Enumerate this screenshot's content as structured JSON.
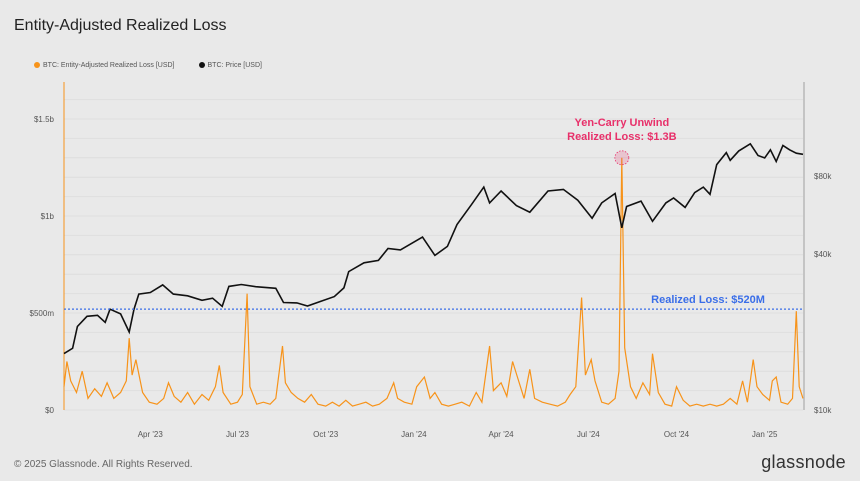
{
  "title": "Entity-Adjusted Realized Loss",
  "footer": "© 2025 Glassnode. All Rights Reserved.",
  "brand": "glassnode",
  "chart_data": {
    "type": "line",
    "title": "Entity-Adjusted Realized Loss",
    "legend": "top-left",
    "grid": true,
    "x_range": [
      "2023-01-01",
      "2025-02-10"
    ],
    "x_ticks": [
      {
        "date": "2023-04-01",
        "label": "Apr '23"
      },
      {
        "date": "2023-07-01",
        "label": "Jul '23"
      },
      {
        "date": "2023-10-01",
        "label": "Oct '23"
      },
      {
        "date": "2024-01-01",
        "label": "Jan '24"
      },
      {
        "date": "2024-04-01",
        "label": "Apr '24"
      },
      {
        "date": "2024-07-01",
        "label": "Jul '24"
      },
      {
        "date": "2024-10-01",
        "label": "Oct '24"
      },
      {
        "date": "2025-01-01",
        "label": "Jan '25"
      }
    ],
    "y_left": {
      "unit": "USD",
      "range": [
        0,
        1500000000
      ],
      "ticks": [
        {
          "v": 0,
          "label": "$0"
        },
        {
          "v": 500000000,
          "label": "$500m"
        },
        {
          "v": 1000000000,
          "label": "$1b"
        },
        {
          "v": 1500000000,
          "label": "$1.5b"
        }
      ]
    },
    "y_right": {
      "unit": "USD",
      "scale": "log",
      "range": [
        10000,
        185000
      ],
      "ticks": [
        {
          "v": 10000,
          "label": "$10k"
        },
        {
          "v": 40000,
          "label": "$40k"
        },
        {
          "v": 80000,
          "label": "$80k"
        }
      ]
    },
    "series": [
      {
        "name": "BTC: Entity-Adjusted Realized Loss [USD]",
        "color": "#f7931a",
        "axis": "left",
        "points": [
          [
            "2023-01-01",
            120
          ],
          [
            "2023-01-04",
            250
          ],
          [
            "2023-01-08",
            150
          ],
          [
            "2023-01-14",
            90
          ],
          [
            "2023-01-20",
            200
          ],
          [
            "2023-01-26",
            60
          ],
          [
            "2023-02-02",
            110
          ],
          [
            "2023-02-09",
            70
          ],
          [
            "2023-02-15",
            140
          ],
          [
            "2023-02-22",
            60
          ],
          [
            "2023-03-01",
            90
          ],
          [
            "2023-03-07",
            150
          ],
          [
            "2023-03-10",
            370
          ],
          [
            "2023-03-13",
            180
          ],
          [
            "2023-03-17",
            260
          ],
          [
            "2023-03-24",
            90
          ],
          [
            "2023-03-31",
            40
          ],
          [
            "2023-04-08",
            30
          ],
          [
            "2023-04-15",
            60
          ],
          [
            "2023-04-20",
            140
          ],
          [
            "2023-04-26",
            70
          ],
          [
            "2023-05-03",
            40
          ],
          [
            "2023-05-10",
            90
          ],
          [
            "2023-05-17",
            30
          ],
          [
            "2023-05-25",
            80
          ],
          [
            "2023-06-01",
            50
          ],
          [
            "2023-06-08",
            120
          ],
          [
            "2023-06-12",
            230
          ],
          [
            "2023-06-16",
            90
          ],
          [
            "2023-06-24",
            30
          ],
          [
            "2023-07-01",
            40
          ],
          [
            "2023-07-06",
            80
          ],
          [
            "2023-07-11",
            600
          ],
          [
            "2023-07-14",
            120
          ],
          [
            "2023-07-21",
            30
          ],
          [
            "2023-07-28",
            40
          ],
          [
            "2023-08-04",
            30
          ],
          [
            "2023-08-10",
            60
          ],
          [
            "2023-08-17",
            330
          ],
          [
            "2023-08-20",
            140
          ],
          [
            "2023-08-26",
            90
          ],
          [
            "2023-09-02",
            60
          ],
          [
            "2023-09-09",
            40
          ],
          [
            "2023-09-16",
            80
          ],
          [
            "2023-09-23",
            30
          ],
          [
            "2023-10-01",
            20
          ],
          [
            "2023-10-08",
            40
          ],
          [
            "2023-10-15",
            20
          ],
          [
            "2023-10-22",
            50
          ],
          [
            "2023-10-29",
            20
          ],
          [
            "2023-11-05",
            30
          ],
          [
            "2023-11-12",
            40
          ],
          [
            "2023-11-19",
            20
          ],
          [
            "2023-11-26",
            30
          ],
          [
            "2023-12-04",
            60
          ],
          [
            "2023-12-11",
            140
          ],
          [
            "2023-12-15",
            60
          ],
          [
            "2023-12-22",
            40
          ],
          [
            "2023-12-30",
            30
          ],
          [
            "2024-01-04",
            120
          ],
          [
            "2024-01-12",
            170
          ],
          [
            "2024-01-18",
            60
          ],
          [
            "2024-01-23",
            90
          ],
          [
            "2024-01-30",
            30
          ],
          [
            "2024-02-06",
            20
          ],
          [
            "2024-02-13",
            30
          ],
          [
            "2024-02-20",
            40
          ],
          [
            "2024-02-28",
            20
          ],
          [
            "2024-03-06",
            90
          ],
          [
            "2024-03-12",
            40
          ],
          [
            "2024-03-20",
            330
          ],
          [
            "2024-03-24",
            100
          ],
          [
            "2024-04-01",
            140
          ],
          [
            "2024-04-07",
            70
          ],
          [
            "2024-04-13",
            250
          ],
          [
            "2024-04-18",
            170
          ],
          [
            "2024-04-25",
            60
          ],
          [
            "2024-05-01",
            210
          ],
          [
            "2024-05-06",
            60
          ],
          [
            "2024-05-14",
            40
          ],
          [
            "2024-05-22",
            30
          ],
          [
            "2024-05-30",
            20
          ],
          [
            "2024-06-07",
            40
          ],
          [
            "2024-06-12",
            80
          ],
          [
            "2024-06-18",
            120
          ],
          [
            "2024-06-24",
            580
          ],
          [
            "2024-06-28",
            180
          ],
          [
            "2024-07-04",
            260
          ],
          [
            "2024-07-08",
            150
          ],
          [
            "2024-07-15",
            40
          ],
          [
            "2024-07-22",
            30
          ],
          [
            "2024-07-29",
            60
          ],
          [
            "2024-08-02",
            200
          ],
          [
            "2024-08-05",
            1300
          ],
          [
            "2024-08-08",
            320
          ],
          [
            "2024-08-14",
            120
          ],
          [
            "2024-08-20",
            60
          ],
          [
            "2024-08-27",
            140
          ],
          [
            "2024-09-03",
            80
          ],
          [
            "2024-09-06",
            290
          ],
          [
            "2024-09-12",
            90
          ],
          [
            "2024-09-19",
            30
          ],
          [
            "2024-09-26",
            20
          ],
          [
            "2024-10-01",
            120
          ],
          [
            "2024-10-08",
            50
          ],
          [
            "2024-10-15",
            20
          ],
          [
            "2024-10-22",
            30
          ],
          [
            "2024-10-29",
            20
          ],
          [
            "2024-11-05",
            30
          ],
          [
            "2024-11-12",
            20
          ],
          [
            "2024-11-19",
            30
          ],
          [
            "2024-11-26",
            60
          ],
          [
            "2024-12-03",
            30
          ],
          [
            "2024-12-09",
            150
          ],
          [
            "2024-12-14",
            40
          ],
          [
            "2024-12-20",
            260
          ],
          [
            "2024-12-24",
            120
          ],
          [
            "2024-12-30",
            80
          ],
          [
            "2025-01-06",
            50
          ],
          [
            "2025-01-09",
            150
          ],
          [
            "2025-01-13",
            170
          ],
          [
            "2025-01-18",
            40
          ],
          [
            "2025-01-25",
            30
          ],
          [
            "2025-01-30",
            60
          ],
          [
            "2025-02-03",
            510
          ],
          [
            "2025-02-06",
            120
          ],
          [
            "2025-02-10",
            60
          ]
        ]
      },
      {
        "name": "BTC: Price [USD]",
        "color": "#111111",
        "axis": "right",
        "points": [
          [
            "2023-01-01",
            16500
          ],
          [
            "2023-01-10",
            17300
          ],
          [
            "2023-01-15",
            21000
          ],
          [
            "2023-01-25",
            23000
          ],
          [
            "2023-02-05",
            23200
          ],
          [
            "2023-02-13",
            21800
          ],
          [
            "2023-02-18",
            24500
          ],
          [
            "2023-03-01",
            23500
          ],
          [
            "2023-03-10",
            20000
          ],
          [
            "2023-03-15",
            24500
          ],
          [
            "2023-03-20",
            28000
          ],
          [
            "2023-04-01",
            28400
          ],
          [
            "2023-04-14",
            30400
          ],
          [
            "2023-04-25",
            28000
          ],
          [
            "2023-05-10",
            27600
          ],
          [
            "2023-05-25",
            26500
          ],
          [
            "2023-06-05",
            27000
          ],
          [
            "2023-06-15",
            25100
          ],
          [
            "2023-06-22",
            30000
          ],
          [
            "2023-07-05",
            30500
          ],
          [
            "2023-07-20",
            29900
          ],
          [
            "2023-08-10",
            29500
          ],
          [
            "2023-08-18",
            26000
          ],
          [
            "2023-09-01",
            25900
          ],
          [
            "2023-09-12",
            25200
          ],
          [
            "2023-09-25",
            26200
          ],
          [
            "2023-10-10",
            27400
          ],
          [
            "2023-10-20",
            29600
          ],
          [
            "2023-10-25",
            34200
          ],
          [
            "2023-11-10",
            37000
          ],
          [
            "2023-11-25",
            37800
          ],
          [
            "2023-12-05",
            42000
          ],
          [
            "2023-12-18",
            41500
          ],
          [
            "2024-01-10",
            46500
          ],
          [
            "2024-01-23",
            39500
          ],
          [
            "2024-02-05",
            42800
          ],
          [
            "2024-02-15",
            52000
          ],
          [
            "2024-03-01",
            62000
          ],
          [
            "2024-03-14",
            72500
          ],
          [
            "2024-03-20",
            63000
          ],
          [
            "2024-04-01",
            70000
          ],
          [
            "2024-04-17",
            61500
          ],
          [
            "2024-05-01",
            58000
          ],
          [
            "2024-05-20",
            70000
          ],
          [
            "2024-06-05",
            71000
          ],
          [
            "2024-06-20",
            64500
          ],
          [
            "2024-07-05",
            55000
          ],
          [
            "2024-07-15",
            63000
          ],
          [
            "2024-07-29",
            68500
          ],
          [
            "2024-08-05",
            50500
          ],
          [
            "2024-08-10",
            61000
          ],
          [
            "2024-08-25",
            64000
          ],
          [
            "2024-09-06",
            53500
          ],
          [
            "2024-09-20",
            63000
          ],
          [
            "2024-09-28",
            65800
          ],
          [
            "2024-10-10",
            60500
          ],
          [
            "2024-10-20",
            69000
          ],
          [
            "2024-10-29",
            72500
          ],
          [
            "2024-11-05",
            68000
          ],
          [
            "2024-11-12",
            88500
          ],
          [
            "2024-11-22",
            98500
          ],
          [
            "2024-11-26",
            92000
          ],
          [
            "2024-12-05",
            100000
          ],
          [
            "2024-12-17",
            106500
          ],
          [
            "2024-12-25",
            96000
          ],
          [
            "2025-01-01",
            94000
          ],
          [
            "2025-01-07",
            101000
          ],
          [
            "2025-01-13",
            91000
          ],
          [
            "2025-01-20",
            105000
          ],
          [
            "2025-01-27",
            101000
          ],
          [
            "2025-02-03",
            98000
          ],
          [
            "2025-02-10",
            97000
          ]
        ]
      }
    ],
    "annotations": [
      {
        "type": "hline",
        "value": 520000000,
        "label": "Realized Loss: $520M",
        "color": "#3a6ee8"
      },
      {
        "type": "point",
        "date": "2024-08-05",
        "value": 1300000000,
        "label_lines": [
          "Yen-Carry Unwind",
          "Realized Loss: $1.3B"
        ],
        "color": "#e8306a"
      }
    ]
  }
}
